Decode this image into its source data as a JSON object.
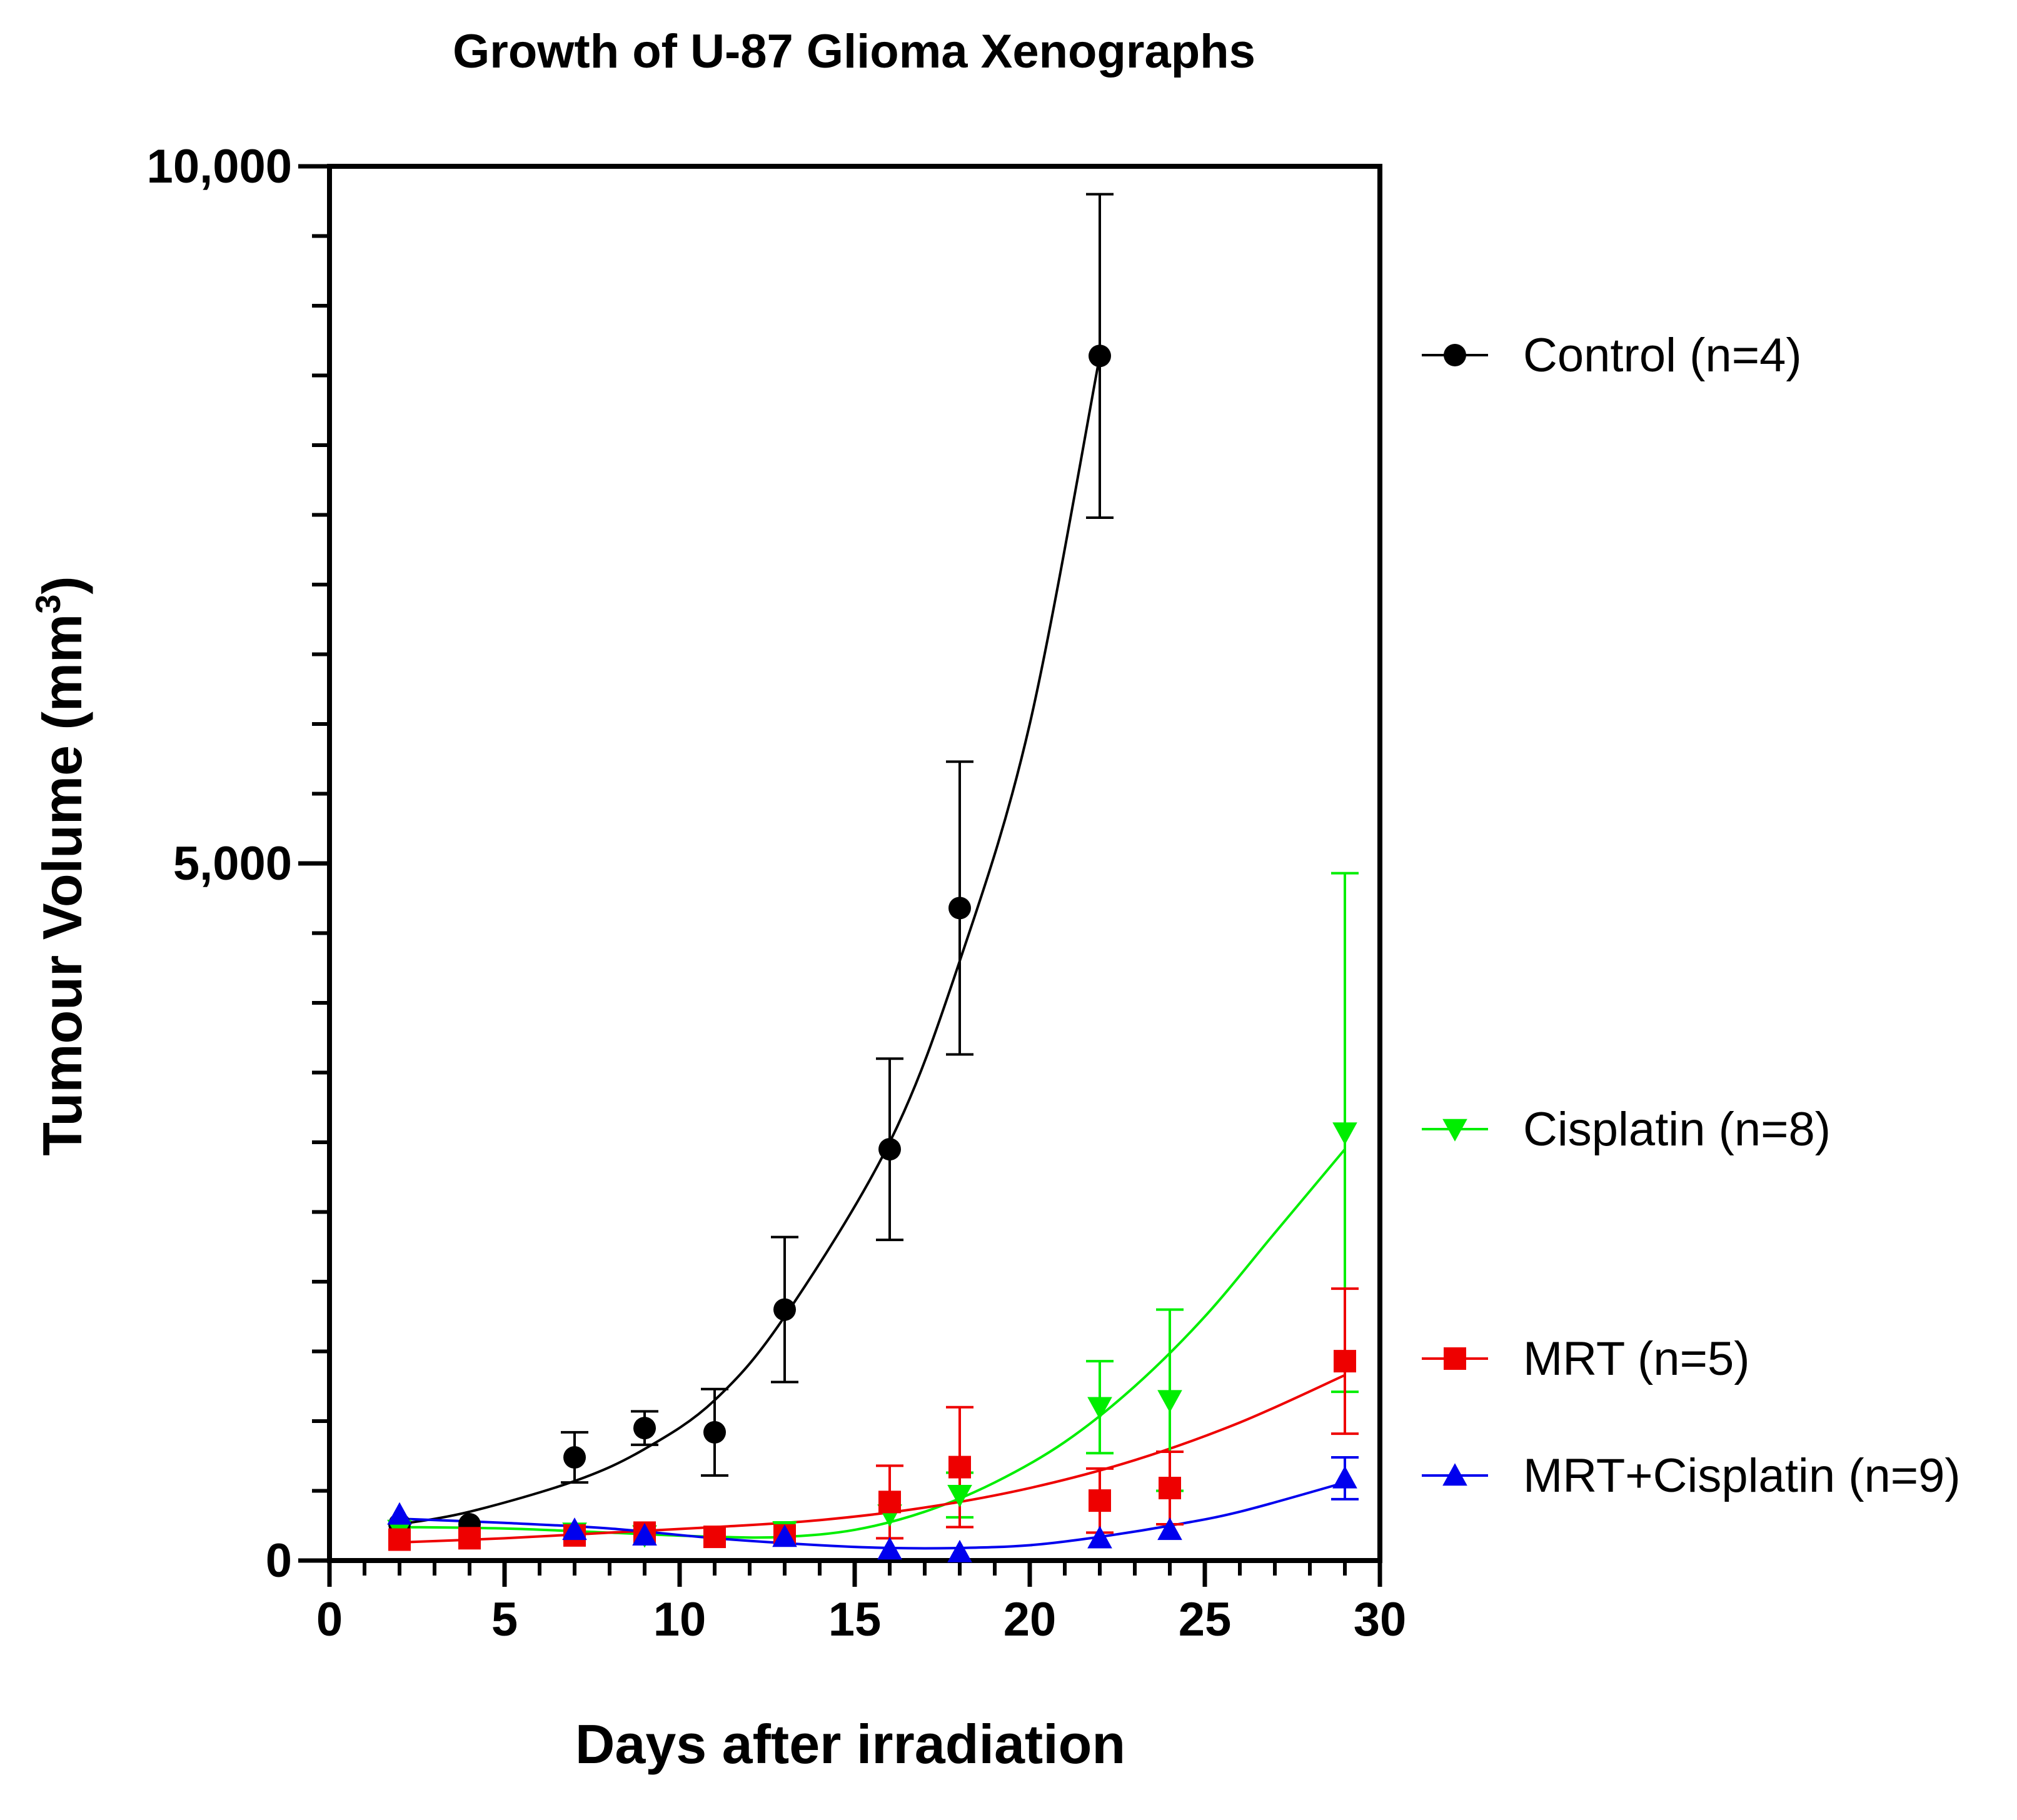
{
  "chart_data": {
    "type": "scatter",
    "title": "Growth of U-87 Glioma Xenographs",
    "xlabel": "Days after irradiation",
    "ylabel": "Tumour Volume  (mm",
    "ylabel_superscript": "3",
    "ylabel_close": ")",
    "xlim": [
      0,
      30
    ],
    "ylim": [
      0,
      10000
    ],
    "x_ticks": [
      0,
      5,
      10,
      15,
      20,
      25,
      30
    ],
    "x_tick_labels": [
      "0",
      "5",
      "10",
      "15",
      "20",
      "25",
      "30"
    ],
    "y_ticks": [
      0,
      5000,
      10000
    ],
    "y_tick_labels": [
      "0",
      "5,000",
      "10,000"
    ],
    "legend_position": "right",
    "series": [
      {
        "name": "Control (n=4)",
        "color": "#000000",
        "marker": "circle",
        "x": [
          2,
          4,
          7,
          9,
          11,
          13,
          16,
          18,
          22
        ],
        "y": [
          260,
          260,
          740,
          950,
          920,
          1800,
          2950,
          4680,
          8640
        ],
        "error": [
          0,
          0,
          180,
          120,
          310,
          520,
          650,
          1050,
          1160
        ],
        "fit_x": [
          2,
          4,
          7,
          9,
          11,
          13,
          16,
          18,
          20,
          22
        ],
        "fit_y": [
          260,
          350,
          570,
          800,
          1150,
          1750,
          3000,
          4300,
          6000,
          8640
        ]
      },
      {
        "name": "Cisplatin (n=8)",
        "color": "#00ee00",
        "marker": "triangle-down",
        "x": [
          2,
          7,
          9,
          13,
          16,
          18,
          22,
          24,
          29
        ],
        "y": [
          220,
          200,
          180,
          210,
          330,
          470,
          1100,
          1150,
          3070
        ],
        "error": [
          0,
          0,
          0,
          0,
          0,
          160,
          330,
          650,
          1860
        ],
        "fit_x": [
          2,
          5,
          8,
          11,
          13,
          15,
          17,
          19,
          21,
          23,
          25,
          27,
          29
        ],
        "fit_y": [
          240,
          230,
          200,
          170,
          170,
          220,
          350,
          560,
          850,
          1250,
          1750,
          2350,
          2950
        ]
      },
      {
        "name": "MRT (n=5)",
        "color": "#ee0000",
        "marker": "square",
        "x": [
          2,
          4,
          7,
          9,
          11,
          13,
          16,
          18,
          22,
          24,
          29
        ],
        "y": [
          150,
          160,
          180,
          200,
          170,
          180,
          420,
          670,
          430,
          520,
          1430
        ],
        "error": [
          0,
          0,
          0,
          0,
          0,
          0,
          260,
          430,
          230,
          260,
          520
        ],
        "fit_x": [
          2,
          5,
          8,
          11,
          14,
          17,
          20,
          23,
          26,
          29
        ],
        "fit_y": [
          130,
          160,
          200,
          240,
          290,
          380,
          520,
          720,
          990,
          1330
        ]
      },
      {
        "name": "MRT+Cisplatin (n=9)",
        "color": "#0000ee",
        "marker": "triangle-up",
        "x": [
          2,
          7,
          9,
          13,
          16,
          18,
          22,
          24,
          29
        ],
        "y": [
          330,
          220,
          180,
          170,
          80,
          60,
          160,
          220,
          590
        ],
        "error": [
          0,
          0,
          0,
          0,
          0,
          0,
          0,
          0,
          150
        ],
        "fit_x": [
          2,
          5,
          8,
          11,
          14,
          16,
          18,
          20,
          22,
          24,
          26,
          29
        ],
        "fit_y": [
          300,
          270,
          230,
          160,
          110,
          90,
          90,
          110,
          170,
          250,
          350,
          560
        ]
      }
    ]
  }
}
